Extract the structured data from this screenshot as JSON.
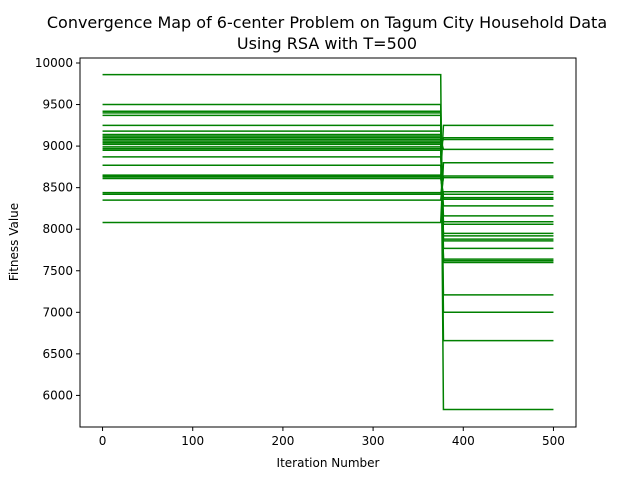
{
  "chart_data": {
    "type": "line",
    "title": "Convergence Map of 6-center Problem on Tagum City Household Data",
    "subtitle": "Using RSA with T=500",
    "xlabel": "Iteration Number",
    "ylabel": "Fitness Value",
    "xlim": [
      -25,
      525
    ],
    "ylim": [
      5620,
      10060
    ],
    "xticks": [
      0,
      100,
      200,
      300,
      400,
      500
    ],
    "yticks": [
      6000,
      6500,
      7000,
      7500,
      8000,
      8500,
      9000,
      9500,
      10000
    ],
    "grid": false,
    "legend": "none",
    "line_color": "#008000",
    "drop_iteration": 375,
    "settle_iteration": 378,
    "x_end": 500,
    "runs": [
      {
        "initial": 9860,
        "final": 5830
      },
      {
        "initial": 9500,
        "final": 6660
      },
      {
        "initial": 9420,
        "final": 7000
      },
      {
        "initial": 9400,
        "final": 7210
      },
      {
        "initial": 9370,
        "final": 7600
      },
      {
        "initial": 9250,
        "final": 7620
      },
      {
        "initial": 9180,
        "final": 7640
      },
      {
        "initial": 9140,
        "final": 7770
      },
      {
        "initial": 9120,
        "final": 7860
      },
      {
        "initial": 9100,
        "final": 7880
      },
      {
        "initial": 9060,
        "final": 7920
      },
      {
        "initial": 9040,
        "final": 7950
      },
      {
        "initial": 8970,
        "final": 8060
      },
      {
        "initial": 8950,
        "final": 8090
      },
      {
        "initial": 8870,
        "final": 8160
      },
      {
        "initial": 8770,
        "final": 8280
      },
      {
        "initial": 8650,
        "final": 8360
      },
      {
        "initial": 8630,
        "final": 8380
      },
      {
        "initial": 8610,
        "final": 8420
      },
      {
        "initial": 8440,
        "final": 8450
      },
      {
        "initial": 8420,
        "final": 8620
      },
      {
        "initial": 8350,
        "final": 8640
      },
      {
        "initial": 8080,
        "final": 8800
      },
      {
        "initial": 9080,
        "final": 8960
      },
      {
        "initial": 9020,
        "final": 9080
      },
      {
        "initial": 8990,
        "final": 9100
      },
      {
        "initial": 8640,
        "final": 9250
      }
    ]
  }
}
